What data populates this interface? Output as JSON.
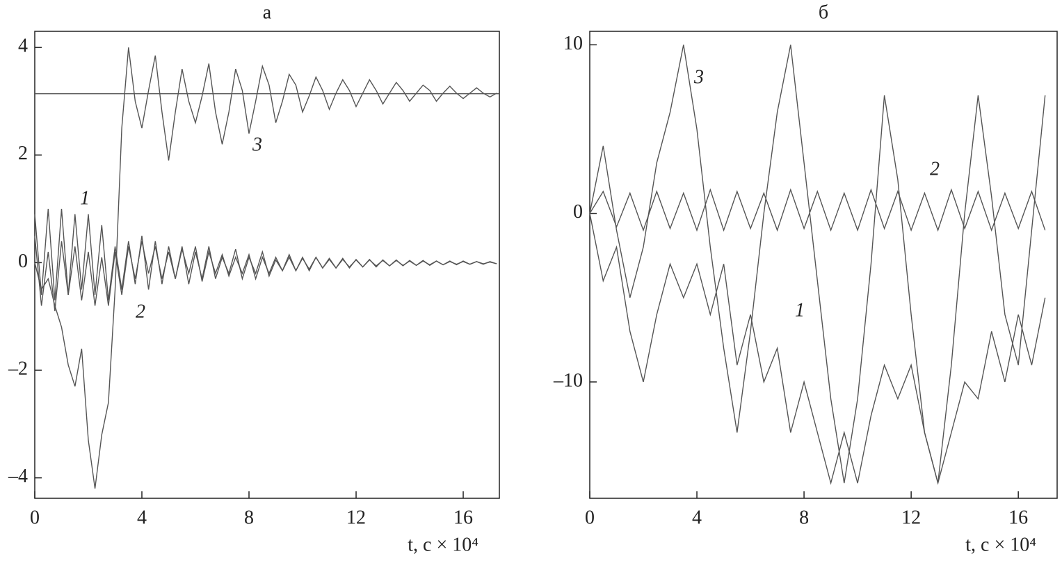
{
  "chart_data": [
    {
      "type": "line",
      "title": "а",
      "x_label": "t, с × 10⁴",
      "xlim": [
        0,
        17.35
      ],
      "ylim": [
        -4.38,
        4.3
      ],
      "xticks": [
        0,
        4,
        8,
        12,
        16
      ],
      "yticks": [
        {
          "value": -4,
          "label": "–4"
        },
        {
          "value": -2,
          "label": "–2"
        },
        0,
        2,
        4
      ],
      "hline": 3.14,
      "x": [
        0,
        0.25,
        0.5,
        0.75,
        1,
        1.25,
        1.5,
        1.75,
        2,
        2.25,
        2.5,
        2.75,
        3,
        3.25,
        3.5,
        3.75,
        4,
        4.25,
        4.5,
        4.75,
        5,
        5.25,
        5.5,
        5.75,
        6,
        6.25,
        6.5,
        6.75,
        7,
        7.25,
        7.5,
        7.75,
        8,
        8.25,
        8.5,
        8.75,
        9,
        9.25,
        9.5,
        9.75,
        10,
        10.25,
        10.5,
        10.75,
        11,
        11.25,
        11.5,
        11.75,
        12,
        12.25,
        12.5,
        12.75,
        13,
        13.25,
        13.5,
        13.75,
        14,
        14.25,
        14.5,
        14.75,
        15,
        15.25,
        15.5,
        15.75,
        16,
        16.25,
        16.5,
        16.75,
        17,
        17.25
      ],
      "series": [
        {
          "name": "1",
          "color": "#555555",
          "values": [
            0.9,
            -0.6,
            1.0,
            -0.7,
            1.0,
            -0.6,
            0.9,
            -0.5,
            0.9,
            -0.6,
            0.7,
            -0.7,
            0.3,
            -0.5,
            0.4,
            -0.4,
            0.5,
            -0.5,
            0.4,
            -0.4,
            0.3,
            -0.3,
            0.3,
            -0.4,
            0.2,
            -0.3,
            0.3,
            -0.3,
            0.1,
            -0.2,
            0.25,
            -0.3,
            0.1,
            -0.2,
            0.2,
            -0.25,
            0.05,
            -0.15,
            0.15,
            -0.15,
            0.1,
            -0.15,
            0.1,
            -0.1,
            0.08,
            -0.1,
            0.08,
            -0.1,
            0.06,
            -0.08,
            0.06,
            -0.08,
            0.05,
            -0.06,
            0.05,
            -0.06,
            0.04,
            -0.05,
            0.04,
            -0.05,
            0.03,
            -0.04,
            0.03,
            -0.04,
            0.03,
            -0.03,
            0.02,
            -0.03,
            0.02,
            -0.02
          ]
        },
        {
          "name": "2",
          "color": "#555555",
          "values": [
            0.5,
            -0.8,
            0.2,
            -0.9,
            0.4,
            -0.6,
            0.3,
            -0.7,
            0.2,
            -0.8,
            0.1,
            -0.8,
            0.2,
            -0.6,
            0.3,
            -0.3,
            0.4,
            -0.2,
            0.3,
            -0.3,
            0.2,
            -0.3,
            0.25,
            -0.2,
            0.3,
            -0.35,
            0.2,
            -0.2,
            0.15,
            -0.25,
            0.1,
            -0.2,
            0.15,
            -0.3,
            0.1,
            -0.2,
            0.1,
            -0.15,
            0.1,
            -0.15,
            0.08,
            -0.12,
            0.1,
            -0.1,
            0.06,
            -0.1,
            0.06,
            -0.08,
            0.05,
            -0.08,
            0.05,
            -0.06,
            0.04,
            -0.06,
            0.04,
            -0.05,
            0.03,
            -0.05,
            0.03,
            -0.04,
            0.03,
            -0.04,
            0.02,
            -0.03,
            0.02,
            -0.03,
            0.02,
            -0.02,
            0.01,
            -0.02
          ]
        },
        {
          "name": "3",
          "color": "#555555",
          "values": [
            0,
            -0.5,
            -0.3,
            -0.8,
            -1.2,
            -1.9,
            -2.3,
            -1.6,
            -3.3,
            -4.2,
            -3.2,
            -2.6,
            -0.5,
            2.5,
            4.0,
            3.0,
            2.5,
            3.2,
            3.85,
            2.8,
            1.9,
            2.8,
            3.6,
            3.0,
            2.6,
            3.1,
            3.7,
            2.8,
            2.2,
            2.8,
            3.6,
            3.2,
            2.4,
            3.0,
            3.65,
            3.3,
            2.6,
            3.0,
            3.5,
            3.3,
            2.8,
            3.1,
            3.45,
            3.2,
            2.85,
            3.15,
            3.4,
            3.2,
            2.9,
            3.15,
            3.4,
            3.2,
            2.95,
            3.15,
            3.35,
            3.2,
            3.0,
            3.15,
            3.3,
            3.2,
            3.0,
            3.15,
            3.28,
            3.15,
            3.05,
            3.15,
            3.25,
            3.15,
            3.08,
            3.15
          ]
        }
      ]
    },
    {
      "type": "line",
      "title": "б",
      "x_label": "t, с × 10⁴",
      "xlim": [
        0,
        17.45
      ],
      "ylim": [
        -16.9,
        10.8
      ],
      "xticks": [
        0,
        4,
        8,
        12,
        16
      ],
      "yticks": [
        {
          "value": -10,
          "label": "–10"
        },
        0,
        10
      ],
      "x": [
        0,
        0.5,
        1,
        1.5,
        2,
        2.5,
        3,
        3.5,
        4,
        4.5,
        5,
        5.5,
        6,
        6.5,
        7,
        7.5,
        8,
        8.5,
        9,
        9.5,
        10,
        10.5,
        11,
        11.5,
        12,
        12.5,
        13,
        13.5,
        14,
        14.5,
        15,
        15.5,
        16,
        16.5,
        17
      ],
      "series": [
        {
          "name": "1",
          "color": "#555555",
          "values": [
            0,
            -4,
            -2,
            -7,
            -10,
            -6,
            -3,
            -5,
            -3,
            -6,
            -3,
            -9,
            -6,
            -10,
            -8,
            -13,
            -10,
            -13,
            -16,
            -13,
            -16,
            -12,
            -9,
            -11,
            -9,
            -13,
            -16,
            -13,
            -10,
            -11,
            -7,
            -10,
            -6,
            -9,
            -5
          ]
        },
        {
          "name": "2",
          "color": "#555555",
          "values": [
            0,
            1.3,
            -0.8,
            1.2,
            -1,
            1.3,
            -0.9,
            1.2,
            -1,
            1.4,
            -1,
            1.3,
            -0.9,
            1.2,
            -1,
            1.4,
            -0.9,
            1.3,
            -1,
            1.2,
            -1,
            1.4,
            -0.9,
            1.3,
            -1,
            1.2,
            -1,
            1.4,
            -0.9,
            1.3,
            -1,
            1.2,
            -0.9,
            1.3,
            -1
          ]
        },
        {
          "name": "3",
          "color": "#555555",
          "values": [
            0,
            4,
            -1,
            -5,
            -2,
            3,
            6,
            10,
            5,
            -2,
            -8,
            -13,
            -7,
            0,
            6,
            10,
            3,
            -4,
            -11,
            -16,
            -11,
            -3,
            7,
            2,
            -6,
            -13,
            -16,
            -9,
            0,
            7,
            1,
            -6,
            -9,
            -1,
            7
          ]
        }
      ]
    }
  ]
}
